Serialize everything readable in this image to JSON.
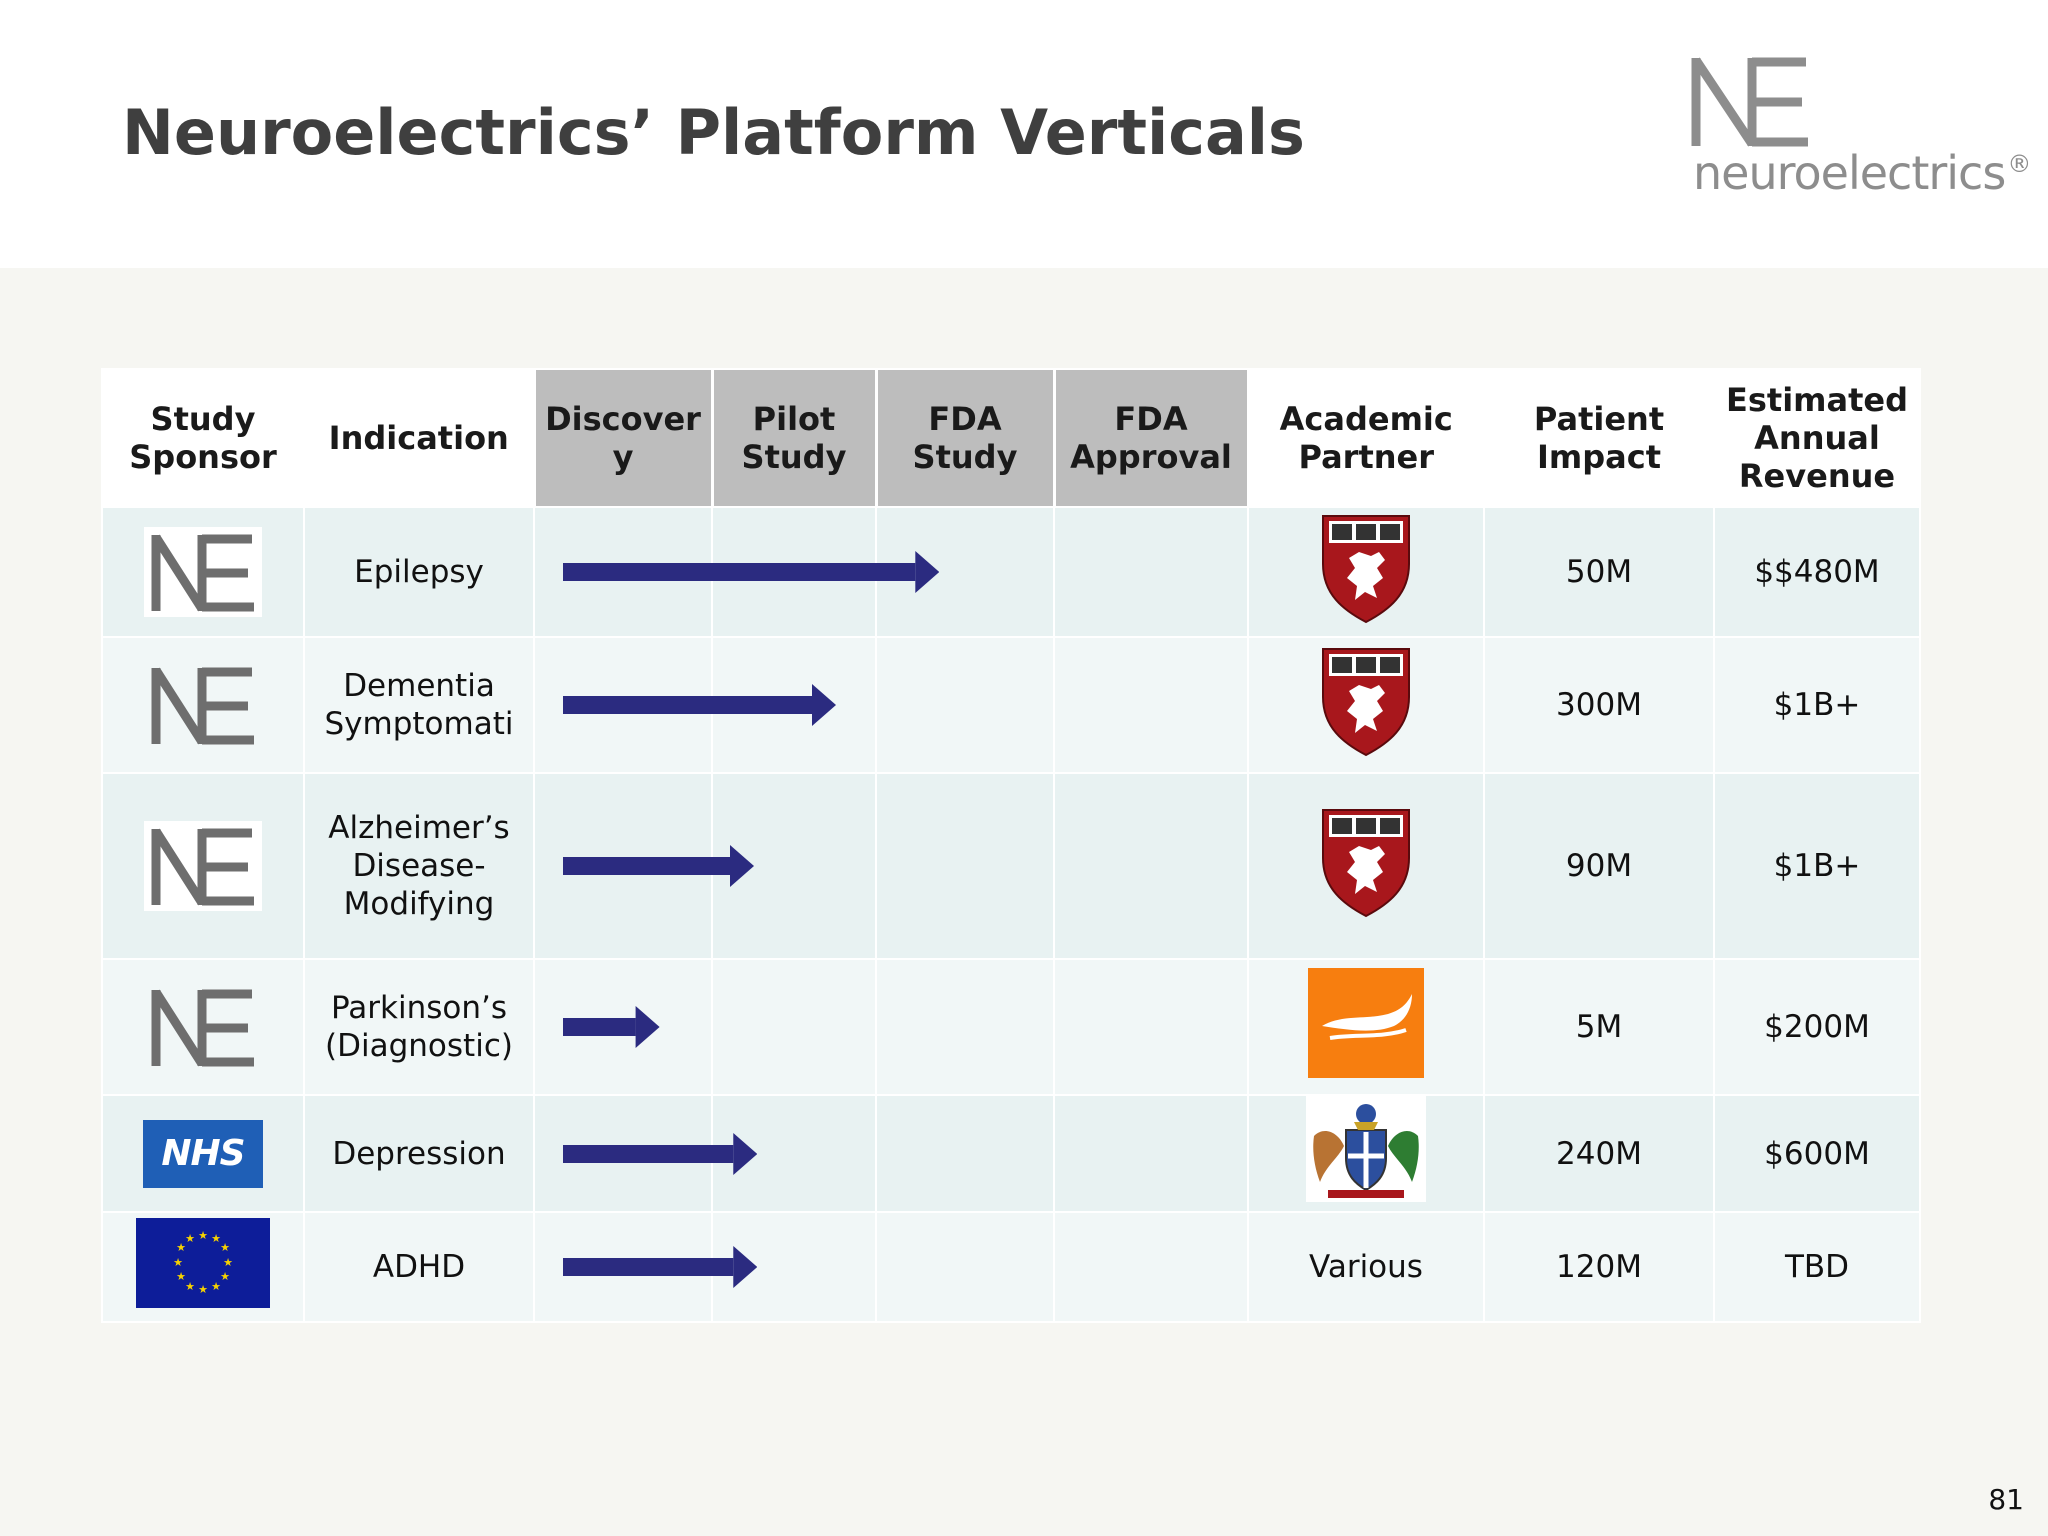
{
  "title": "Neuroelectrics’ Platform Verticals",
  "logo": {
    "mark": "NE",
    "wordmark": "neuroelectrics",
    "registered": "®"
  },
  "columns": {
    "sponsor": [
      "Study",
      "Sponsor"
    ],
    "indication": "Indication",
    "discovery": [
      "Discover",
      "y"
    ],
    "pilot": [
      "Pilot",
      "Study"
    ],
    "fda_study": [
      "FDA",
      "Study"
    ],
    "fda_approval": [
      "FDA",
      "Approval"
    ],
    "partner": [
      "Academic",
      "Partner"
    ],
    "impact": [
      "Patient",
      "Impact"
    ],
    "revenue": [
      "Estimated",
      "Annual",
      "Revenue"
    ]
  },
  "rows": [
    {
      "sponsor_icon": "ne-logo",
      "indication": [
        "Epilepsy"
      ],
      "progress_phases": 2.35,
      "partner_icon": "harvard-shield-icon",
      "partner_text": "",
      "impact": "50M",
      "revenue": "$$480M"
    },
    {
      "sponsor_icon": "ne-logo",
      "indication": [
        "Dementia",
        "Symptomati"
      ],
      "progress_phases": 1.75,
      "partner_icon": "harvard-shield-icon",
      "partner_text": "",
      "impact": "300M",
      "revenue": "$1B+"
    },
    {
      "sponsor_icon": "ne-logo",
      "indication": [
        "Alzheimer’s",
        "Disease-",
        "Modifying"
      ],
      "progress_phases": 1.25,
      "partner_icon": "harvard-shield-icon",
      "partner_text": "",
      "impact": "90M",
      "revenue": "$1B+"
    },
    {
      "sponsor_icon": "ne-logo",
      "indication": [
        "Parkinson’s",
        "(Diagnostic)"
      ],
      "progress_phases": 0.7,
      "partner_icon": "orange-wave-logo",
      "partner_text": "",
      "impact": "5M",
      "revenue": "$200M"
    },
    {
      "sponsor_icon": "nhs-logo",
      "sponsor_text": "NHS",
      "indication": [
        "Depression"
      ],
      "progress_phases": 1.27,
      "partner_icon": "coat-of-arms-icon",
      "partner_text": "",
      "impact": "240M",
      "revenue": "$600M"
    },
    {
      "sponsor_icon": "eu-flag-icon",
      "indication": [
        "ADHD"
      ],
      "progress_phases": 1.27,
      "partner_icon": "",
      "partner_text": "Various",
      "impact": "120M",
      "revenue": "TBD"
    }
  ],
  "colors": {
    "arrow": "#2b2b80",
    "header_phase": "#bdbdbd",
    "row_odd": "#e8f2f2",
    "row_even": "#f1f7f7"
  },
  "page_number": "81"
}
